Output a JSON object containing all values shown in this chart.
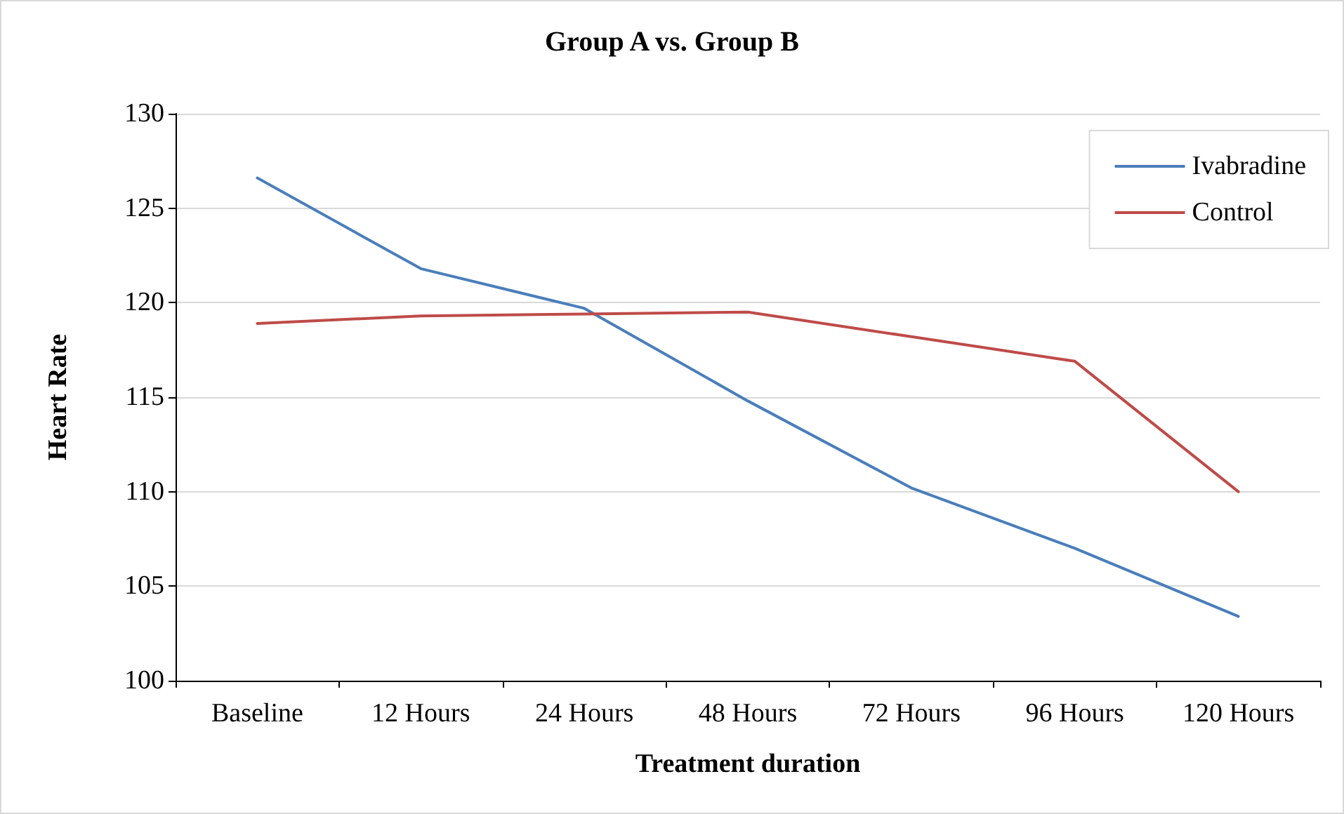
{
  "chart_data": {
    "type": "line",
    "title": "Group A vs. Group B",
    "xlabel": "Treatment duration",
    "ylabel": "Heart Rate",
    "categories": [
      "Baseline",
      "12 Hours",
      "24 Hours",
      "48 Hours",
      "72 Hours",
      "96 Hours",
      "120 Hours"
    ],
    "series": [
      {
        "name": "Ivabradine",
        "color": "#4a7ebb",
        "values": [
          126.6,
          121.8,
          119.7,
          114.8,
          110.2,
          107.0,
          103.4
        ]
      },
      {
        "name": "Control",
        "color": "#be4b48",
        "values": [
          118.9,
          119.3,
          119.4,
          119.5,
          118.2,
          116.9,
          110.0
        ]
      }
    ],
    "ylim": [
      100,
      130
    ],
    "yticks": [
      100,
      105,
      110,
      115,
      120,
      125,
      130
    ],
    "grid": "y",
    "legend": "top right",
    "marker": "none",
    "line_style": "solid"
  }
}
